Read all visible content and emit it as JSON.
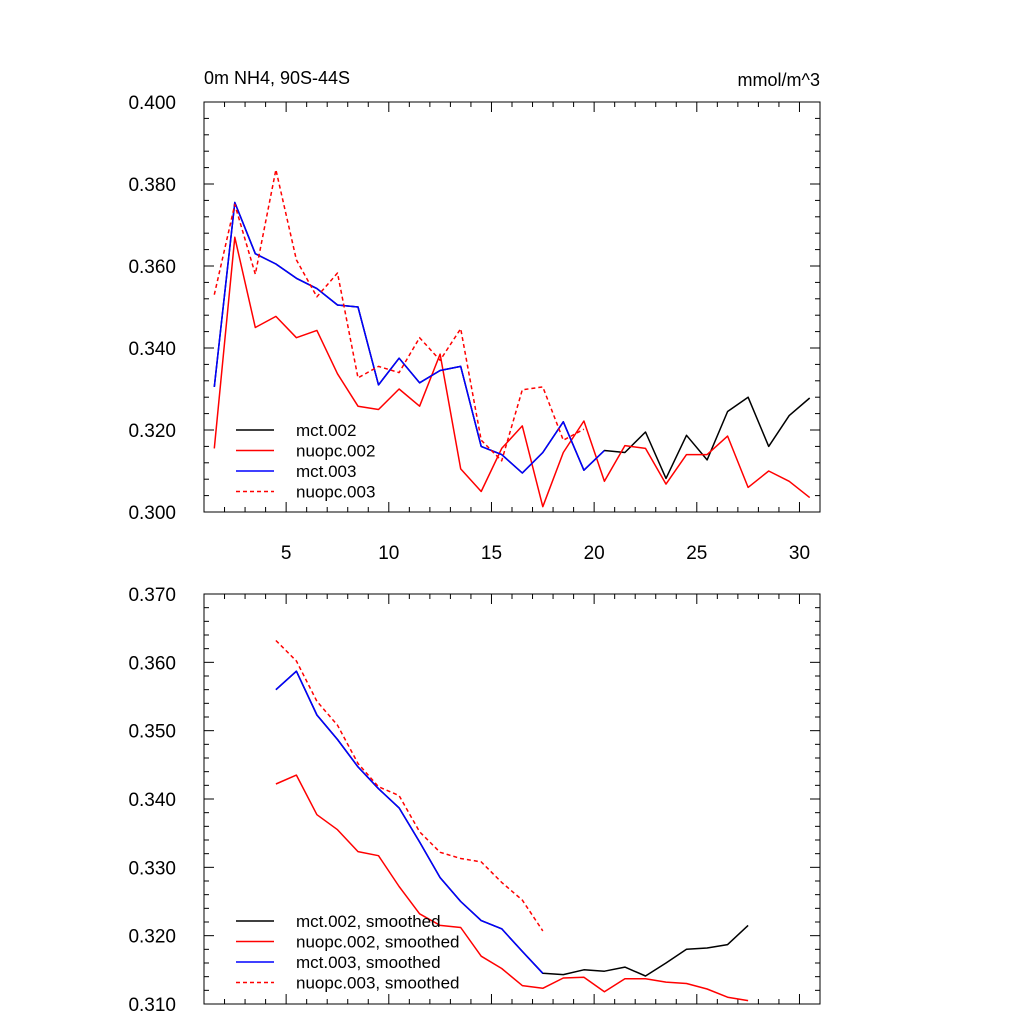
{
  "figure": {
    "title_left": "0m NH4, 90S-44S",
    "title_right": "mmol/m^3"
  },
  "chart_data": [
    {
      "type": "line",
      "title": "0m NH4, 90S-44S",
      "units": "mmol/m^3",
      "xlabel": "",
      "ylabel": "",
      "xlim": [
        1,
        31
      ],
      "ylim": [
        0.3,
        0.4
      ],
      "xticks": [
        5,
        10,
        15,
        20,
        25,
        30
      ],
      "xtick_labels": [
        "5",
        "10",
        "15",
        "20",
        "25",
        "30"
      ],
      "yticks": [
        0.3,
        0.32,
        0.34,
        0.36,
        0.38,
        0.4
      ],
      "ytick_labels": [
        "0.300",
        "0.320",
        "0.340",
        "0.360",
        "0.380",
        "0.400"
      ],
      "legend_position": "bottom-left",
      "series": [
        {
          "name": "mct.002",
          "color": "#000000",
          "dash": "solid",
          "x": [
            1.5,
            2.5,
            3.5,
            4.5,
            5.5,
            6.5,
            7.5,
            8.5,
            9.5,
            10.5,
            11.5,
            12.5,
            13.5,
            14.5,
            15.5,
            16.5,
            17.5,
            18.5,
            19.5,
            20.5,
            21.5,
            22.5,
            23.5,
            24.5,
            25.5,
            26.5,
            27.5,
            28.5,
            29.5,
            30.5
          ],
          "values": [
            0.3305,
            0.3755,
            0.363,
            0.3605,
            0.357,
            0.3545,
            0.3505,
            0.35,
            0.331,
            0.3375,
            0.3315,
            0.3345,
            0.3355,
            0.316,
            0.314,
            0.3095,
            0.3145,
            0.322,
            0.3102,
            0.315,
            0.3145,
            0.3195,
            0.3082,
            0.3187,
            0.3127,
            0.3245,
            0.328,
            0.316,
            0.3235,
            0.3278
          ]
        },
        {
          "name": "nuopc.002",
          "color": "#ff0000",
          "dash": "solid",
          "x": [
            1.5,
            2.5,
            3.5,
            4.5,
            5.5,
            6.5,
            7.5,
            8.5,
            9.5,
            10.5,
            11.5,
            12.5,
            13.5,
            14.5,
            15.5,
            16.5,
            17.5,
            18.5,
            19.5,
            20.5,
            21.5,
            22.5,
            23.5,
            24.5,
            25.5,
            26.5,
            27.5,
            28.5,
            29.5,
            30.5
          ],
          "values": [
            0.3155,
            0.367,
            0.345,
            0.3477,
            0.3425,
            0.3443,
            0.3337,
            0.3258,
            0.325,
            0.33,
            0.3258,
            0.3385,
            0.3105,
            0.305,
            0.3155,
            0.321,
            0.3013,
            0.3145,
            0.3222,
            0.3075,
            0.3162,
            0.3155,
            0.3068,
            0.314,
            0.314,
            0.3185,
            0.306,
            0.31,
            0.3075,
            0.3035
          ]
        },
        {
          "name": "mct.003",
          "color": "#0000ff",
          "dash": "solid",
          "x": [
            1.5,
            2.5,
            3.5,
            4.5,
            5.5,
            6.5,
            7.5,
            8.5,
            9.5,
            10.5,
            11.5,
            12.5,
            13.5,
            14.5,
            15.5,
            16.5,
            17.5,
            18.5,
            19.5,
            20.5
          ],
          "values": [
            0.3305,
            0.3755,
            0.363,
            0.3605,
            0.357,
            0.3545,
            0.3505,
            0.35,
            0.331,
            0.3375,
            0.3315,
            0.3345,
            0.3355,
            0.316,
            0.314,
            0.3095,
            0.3145,
            0.322,
            0.3102,
            0.315
          ]
        },
        {
          "name": "nuopc.003",
          "color": "#ff0000",
          "dash": "dashed",
          "x": [
            1.5,
            2.5,
            3.5,
            4.5,
            5.5,
            6.5,
            7.5,
            8.5,
            9.5,
            10.5,
            11.5,
            12.5,
            13.5,
            14.5,
            15.5,
            16.5,
            17.5,
            18.5,
            19.5
          ],
          "values": [
            0.353,
            0.375,
            0.358,
            0.3835,
            0.3615,
            0.3525,
            0.3583,
            0.3327,
            0.3355,
            0.334,
            0.3425,
            0.337,
            0.3447,
            0.3175,
            0.3125,
            0.3298,
            0.3305,
            0.3175,
            0.3202
          ]
        }
      ]
    },
    {
      "type": "line",
      "title": "",
      "xlabel": "",
      "ylabel": "",
      "xlim": [
        1,
        31
      ],
      "ylim": [
        0.31,
        0.37
      ],
      "xticks": [
        5,
        10,
        15,
        20,
        25,
        30
      ],
      "xtick_labels": [],
      "yticks": [
        0.31,
        0.32,
        0.33,
        0.34,
        0.35,
        0.36,
        0.37
      ],
      "ytick_labels": [
        "0.310",
        "0.320",
        "0.330",
        "0.340",
        "0.350",
        "0.360",
        "0.370"
      ],
      "legend_position": "bottom-left",
      "series": [
        {
          "name": "mct.002, smoothed",
          "color": "#000000",
          "dash": "solid",
          "x": [
            4.5,
            5.5,
            6.5,
            7.5,
            8.5,
            9.5,
            10.5,
            11.5,
            12.5,
            13.5,
            14.5,
            15.5,
            16.5,
            17.5,
            18.5,
            19.5,
            20.5,
            21.5,
            22.5,
            23.5,
            24.5,
            25.5,
            26.5,
            27.5
          ],
          "values": [
            0.356,
            0.3587,
            0.3523,
            0.3487,
            0.3447,
            0.3415,
            0.3387,
            0.3337,
            0.3285,
            0.325,
            0.3222,
            0.321,
            0.3177,
            0.3145,
            0.3143,
            0.315,
            0.3148,
            0.3154,
            0.3141,
            0.316,
            0.318,
            0.3182,
            0.3187,
            0.3215
          ]
        },
        {
          "name": "nuopc.002, smoothed",
          "color": "#ff0000",
          "dash": "solid",
          "x": [
            4.5,
            5.5,
            6.5,
            7.5,
            8.5,
            9.5,
            10.5,
            11.5,
            12.5,
            13.5,
            14.5,
            15.5,
            16.5,
            17.5,
            18.5,
            19.5,
            20.5,
            21.5,
            22.5,
            23.5,
            24.5,
            25.5,
            26.5,
            27.5
          ],
          "values": [
            0.3422,
            0.3435,
            0.3377,
            0.3355,
            0.3323,
            0.3317,
            0.3272,
            0.3232,
            0.3215,
            0.3212,
            0.317,
            0.3152,
            0.3127,
            0.3123,
            0.3138,
            0.3139,
            0.3118,
            0.3137,
            0.3137,
            0.3132,
            0.313,
            0.3122,
            0.311,
            0.3105
          ]
        },
        {
          "name": "mct.003, smoothed",
          "color": "#0000ff",
          "dash": "solid",
          "x": [
            4.5,
            5.5,
            6.5,
            7.5,
            8.5,
            9.5,
            10.5,
            11.5,
            12.5,
            13.5,
            14.5,
            15.5,
            16.5,
            17.5
          ],
          "values": [
            0.356,
            0.3587,
            0.3523,
            0.3487,
            0.3447,
            0.3415,
            0.3387,
            0.3337,
            0.3285,
            0.325,
            0.3222,
            0.321,
            0.3177,
            0.3145
          ]
        },
        {
          "name": "nuopc.003, smoothed",
          "color": "#ff0000",
          "dash": "dashed",
          "x": [
            4.5,
            5.5,
            6.5,
            7.5,
            8.5,
            9.5,
            10.5,
            11.5,
            12.5,
            13.5,
            14.5,
            15.5,
            16.5,
            17.5
          ],
          "values": [
            0.3632,
            0.3602,
            0.3543,
            0.3508,
            0.3452,
            0.3418,
            0.3405,
            0.3352,
            0.3322,
            0.3313,
            0.3308,
            0.3278,
            0.3252,
            0.3207
          ]
        }
      ]
    }
  ]
}
